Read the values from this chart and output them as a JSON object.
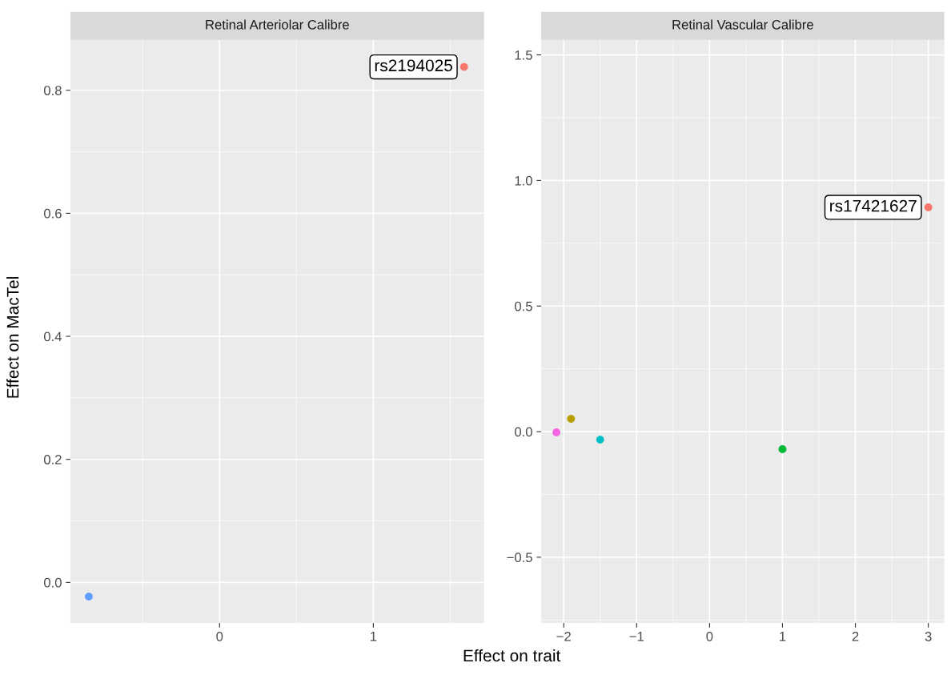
{
  "chart_data": [
    {
      "type": "scatter",
      "title": "Retinal Arteriolar Calibre",
      "ylabel": "Effect on MacTel",
      "xlabel": "Effect on trait",
      "series": [
        {
          "color": "#619cff",
          "x": [
            -0.85
          ],
          "values": [
            -0.023
          ]
        },
        {
          "color": "#f8766d",
          "x": [
            1.59
          ],
          "values": [
            0.838
          ]
        }
      ],
      "xlim": [
        -0.97,
        1.72
      ],
      "xticks": [
        0,
        1
      ],
      "ylim": [
        -0.066,
        0.882
      ],
      "yticks": [
        {
          "value": 0,
          "label": "0.0"
        },
        {
          "value": 0.2,
          "label": "0.2"
        },
        {
          "value": 0.4,
          "label": "0.4"
        },
        {
          "value": 0.6,
          "label": "0.6"
        },
        {
          "value": 0.8,
          "label": "0.8"
        }
      ],
      "annotations": [
        {
          "text": "rs2194025",
          "x": 1.59,
          "y": 0.838
        }
      ],
      "grid": true,
      "marker": "circle"
    },
    {
      "type": "scatter",
      "title": "Retinal Vascular Calibre",
      "series": [
        {
          "color": "#f8766d",
          "x": [
            3.0
          ],
          "values": [
            0.893
          ]
        },
        {
          "color": "#b79f00",
          "x": [
            -1.9
          ],
          "values": [
            0.051
          ]
        },
        {
          "color": "#00ba38",
          "x": [
            1.0
          ],
          "values": [
            -0.07
          ]
        },
        {
          "color": "#00bfc4",
          "x": [
            -1.5
          ],
          "values": [
            -0.032
          ]
        },
        {
          "color": "#f564e3",
          "x": [
            -2.1
          ],
          "values": [
            -0.003
          ]
        }
      ],
      "xlim": [
        -2.31,
        3.22
      ],
      "xticks": [
        {
          "value": -2,
          "label": "−2"
        },
        {
          "value": -1,
          "label": "−1"
        },
        0,
        1,
        2,
        3
      ],
      "ylim": [
        -0.762,
        1.56
      ],
      "yticks": [
        {
          "value": -0.5,
          "label": "−0.5"
        },
        {
          "value": 0,
          "label": "0.0"
        },
        {
          "value": 0.5,
          "label": "0.5"
        },
        {
          "value": 1,
          "label": "1.0"
        },
        {
          "value": 1.5,
          "label": "1.5"
        }
      ],
      "annotations": [
        {
          "text": "rs17421627",
          "x": 3.0,
          "y": 0.893
        }
      ],
      "grid": true,
      "marker": "circle"
    }
  ]
}
